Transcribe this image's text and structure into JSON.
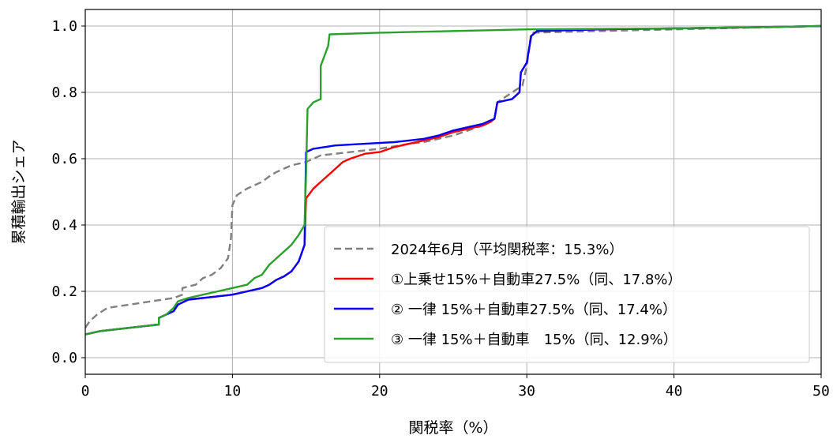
{
  "chart_data": {
    "type": "line",
    "xlabel": "関税率（%）",
    "ylabel": "累積輸出シェア",
    "xlim": [
      0,
      50
    ],
    "ylim": [
      -0.05,
      1.05
    ],
    "x_ticks": [
      "0",
      "10",
      "20",
      "30",
      "40",
      "50"
    ],
    "y_ticks": [
      "0.0",
      "0.2",
      "0.4",
      "0.6",
      "0.8",
      "1.0"
    ],
    "grid": true,
    "legend_position": "lower-right",
    "series": [
      {
        "name": "2024年6月（平均関税率：15.3%）",
        "color": "#808080",
        "dash": "dashed",
        "points": [
          [
            0,
            0.09
          ],
          [
            0.3,
            0.11
          ],
          [
            0.8,
            0.13
          ],
          [
            1.5,
            0.15
          ],
          [
            3,
            0.16
          ],
          [
            4.5,
            0.17
          ],
          [
            6,
            0.18
          ],
          [
            6.6,
            0.19
          ],
          [
            6.6,
            0.21
          ],
          [
            7.5,
            0.22
          ],
          [
            8,
            0.24
          ],
          [
            8.6,
            0.25
          ],
          [
            9.2,
            0.27
          ],
          [
            9.7,
            0.3
          ],
          [
            9.9,
            0.36
          ],
          [
            10.0,
            0.46
          ],
          [
            10.3,
            0.49
          ],
          [
            11,
            0.51
          ],
          [
            12,
            0.53
          ],
          [
            12.6,
            0.55
          ],
          [
            13,
            0.56
          ],
          [
            13.5,
            0.57
          ],
          [
            14,
            0.58
          ],
          [
            15,
            0.59
          ],
          [
            15.5,
            0.6
          ],
          [
            16,
            0.61
          ],
          [
            17,
            0.615
          ],
          [
            19,
            0.625
          ],
          [
            20,
            0.63
          ],
          [
            22,
            0.645
          ],
          [
            23,
            0.65
          ],
          [
            25,
            0.67
          ],
          [
            27,
            0.7
          ],
          [
            27.8,
            0.72
          ],
          [
            28,
            0.77
          ],
          [
            29,
            0.8
          ],
          [
            29.7,
            0.82
          ],
          [
            30,
            0.88
          ],
          [
            30.3,
            0.98
          ],
          [
            35,
            0.985
          ],
          [
            40,
            0.99
          ],
          [
            45,
            0.995
          ],
          [
            50,
            1.0
          ]
        ]
      },
      {
        "name": "①上乗せ15%＋自動車27.5%（同、17.8%）",
        "color": "#ff0000",
        "dash": "solid",
        "points": [
          [
            0,
            0.07
          ],
          [
            1,
            0.08
          ],
          [
            3,
            0.09
          ],
          [
            5,
            0.1
          ],
          [
            5,
            0.12
          ],
          [
            5.5,
            0.13
          ],
          [
            6,
            0.14
          ],
          [
            6.3,
            0.16
          ],
          [
            7,
            0.175
          ],
          [
            8,
            0.18
          ],
          [
            9,
            0.185
          ],
          [
            10,
            0.19
          ],
          [
            11,
            0.2
          ],
          [
            12,
            0.21
          ],
          [
            12.5,
            0.22
          ],
          [
            13,
            0.235
          ],
          [
            13.5,
            0.245
          ],
          [
            14,
            0.26
          ],
          [
            14.5,
            0.29
          ],
          [
            14.9,
            0.34
          ],
          [
            15,
            0.48
          ],
          [
            15.5,
            0.51
          ],
          [
            16,
            0.53
          ],
          [
            16.5,
            0.55
          ],
          [
            17,
            0.57
          ],
          [
            17.5,
            0.59
          ],
          [
            18,
            0.6
          ],
          [
            19,
            0.615
          ],
          [
            20,
            0.62
          ],
          [
            21,
            0.635
          ],
          [
            22,
            0.645
          ],
          [
            23,
            0.655
          ],
          [
            24,
            0.665
          ],
          [
            25,
            0.68
          ],
          [
            26,
            0.69
          ],
          [
            27,
            0.7
          ],
          [
            27.5,
            0.71
          ],
          [
            27.8,
            0.72
          ],
          [
            28,
            0.77
          ],
          [
            29,
            0.78
          ],
          [
            29.5,
            0.8
          ],
          [
            29.6,
            0.86
          ],
          [
            30,
            0.89
          ],
          [
            30.3,
            0.97
          ],
          [
            30.7,
            0.985
          ],
          [
            35,
            0.99
          ],
          [
            40,
            0.993
          ],
          [
            45,
            0.996
          ],
          [
            50,
            1.0
          ]
        ]
      },
      {
        "name": "② 一律 15%＋自動車27.5%（同、17.4%）",
        "color": "#0000ff",
        "dash": "solid",
        "points": [
          [
            0,
            0.07
          ],
          [
            1,
            0.08
          ],
          [
            3,
            0.09
          ],
          [
            5,
            0.1
          ],
          [
            5,
            0.12
          ],
          [
            5.5,
            0.13
          ],
          [
            6,
            0.14
          ],
          [
            6.3,
            0.16
          ],
          [
            7,
            0.175
          ],
          [
            8,
            0.18
          ],
          [
            9,
            0.185
          ],
          [
            10,
            0.19
          ],
          [
            11,
            0.2
          ],
          [
            12,
            0.21
          ],
          [
            12.5,
            0.22
          ],
          [
            13,
            0.235
          ],
          [
            13.5,
            0.245
          ],
          [
            14,
            0.26
          ],
          [
            14.5,
            0.29
          ],
          [
            14.9,
            0.34
          ],
          [
            15,
            0.62
          ],
          [
            15.5,
            0.63
          ],
          [
            17,
            0.64
          ],
          [
            19,
            0.645
          ],
          [
            21,
            0.65
          ],
          [
            22,
            0.655
          ],
          [
            23,
            0.66
          ],
          [
            24,
            0.67
          ],
          [
            25,
            0.685
          ],
          [
            26,
            0.695
          ],
          [
            27,
            0.705
          ],
          [
            27.5,
            0.715
          ],
          [
            27.8,
            0.72
          ],
          [
            28,
            0.77
          ],
          [
            29,
            0.78
          ],
          [
            29.5,
            0.8
          ],
          [
            29.6,
            0.86
          ],
          [
            30,
            0.89
          ],
          [
            30.3,
            0.97
          ],
          [
            30.7,
            0.985
          ],
          [
            35,
            0.99
          ],
          [
            40,
            0.993
          ],
          [
            45,
            0.996
          ],
          [
            50,
            1.0
          ]
        ]
      },
      {
        "name": "③ 一律 15%＋自動車　15%（同、12.9%）",
        "color": "#2ca02c",
        "dash": "solid",
        "points": [
          [
            0,
            0.07
          ],
          [
            1,
            0.08
          ],
          [
            3,
            0.09
          ],
          [
            5,
            0.1
          ],
          [
            5,
            0.12
          ],
          [
            5.5,
            0.13
          ],
          [
            6,
            0.15
          ],
          [
            6.3,
            0.17
          ],
          [
            7,
            0.18
          ],
          [
            8,
            0.19
          ],
          [
            9,
            0.2
          ],
          [
            10,
            0.21
          ],
          [
            11,
            0.22
          ],
          [
            11.5,
            0.24
          ],
          [
            12,
            0.25
          ],
          [
            12.5,
            0.28
          ],
          [
            13,
            0.3
          ],
          [
            13.5,
            0.32
          ],
          [
            14,
            0.34
          ],
          [
            14.5,
            0.37
          ],
          [
            14.9,
            0.4
          ],
          [
            15,
            0.55
          ],
          [
            15.1,
            0.75
          ],
          [
            15.5,
            0.77
          ],
          [
            16,
            0.78
          ],
          [
            16,
            0.88
          ],
          [
            16.5,
            0.94
          ],
          [
            16.6,
            0.975
          ],
          [
            20,
            0.98
          ],
          [
            25,
            0.985
          ],
          [
            30,
            0.99
          ],
          [
            40,
            0.993
          ],
          [
            45,
            0.996
          ],
          [
            50,
            1.0
          ]
        ]
      }
    ]
  }
}
